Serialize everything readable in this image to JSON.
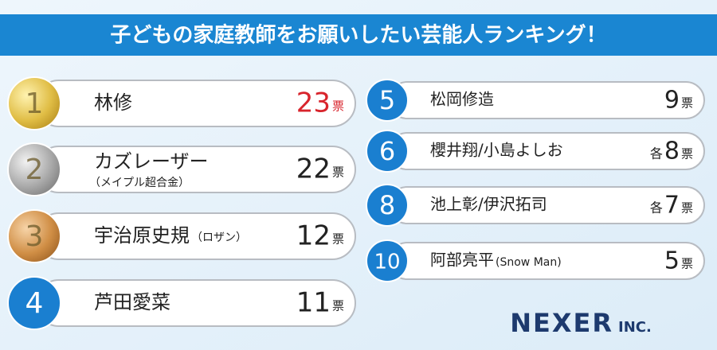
{
  "header": {
    "title": "子どもの家庭教師をお願いしたい芸能人ランキング！"
  },
  "rankings": [
    {
      "rank": 1,
      "name": "林修",
      "count": 23,
      "unit": "票"
    },
    {
      "rank": 2,
      "name": "カズレーザー",
      "note": "（メイプル超合金）",
      "count": 22,
      "unit": "票"
    },
    {
      "rank": 3,
      "name": "宇治原史規",
      "note": "（ロザン）",
      "count": 12,
      "unit": "票"
    },
    {
      "rank": 4,
      "name": "芦田愛菜",
      "count": 11,
      "unit": "票"
    },
    {
      "rank": 5,
      "name": "松岡修造",
      "count": 9,
      "unit": "票"
    },
    {
      "rank": 6,
      "name": "櫻井翔/小島よしお",
      "prefix": "各",
      "count": 8,
      "unit": "票"
    },
    {
      "rank": 8,
      "name": "池上彰/伊沢拓司",
      "prefix": "各",
      "count": 7,
      "unit": "票"
    },
    {
      "rank": 10,
      "name": "阿部亮平",
      "note": "(Snow Man)",
      "count": 5,
      "unit": "票"
    }
  ],
  "logo": {
    "name": "NEXER",
    "suffix": "INC."
  }
}
